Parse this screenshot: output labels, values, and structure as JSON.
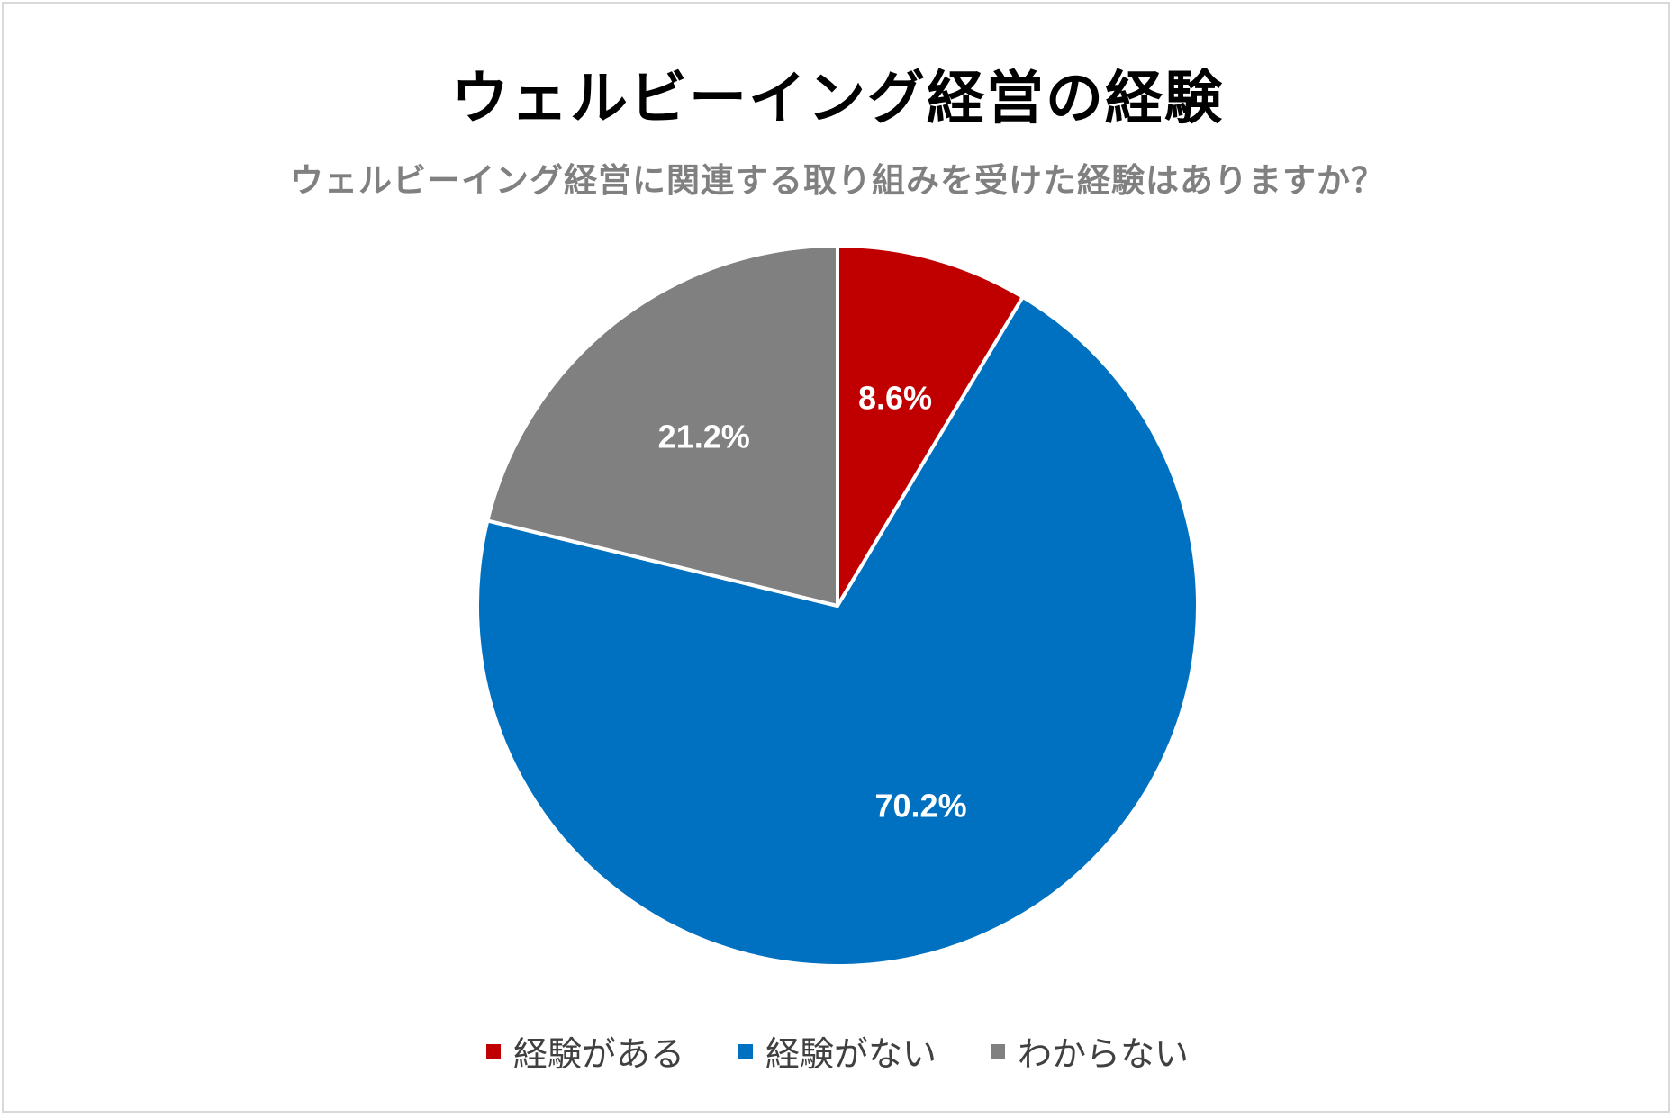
{
  "chart_data": {
    "type": "pie",
    "title": "ウェルビーイング経営の経験",
    "subtitle": "ウェルビーイング経営に関連する取り組みを受けた経験はありますか？",
    "slices": [
      {
        "name": "経験がある",
        "value": 8.6,
        "label": "8.6%",
        "color": "#C00000"
      },
      {
        "name": "経験がない",
        "value": 70.2,
        "label": "70.2%",
        "color": "#0070C0"
      },
      {
        "name": "わからない",
        "value": 21.2,
        "label": "21.2%",
        "color": "#808080"
      }
    ],
    "start_angle": "12 o'clock",
    "direction": "clockwise",
    "legend_position": "bottom"
  }
}
